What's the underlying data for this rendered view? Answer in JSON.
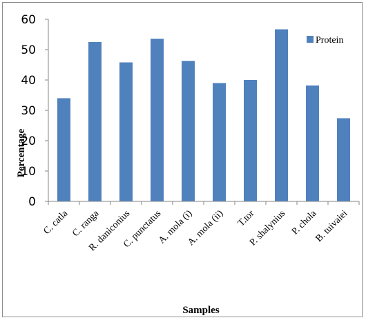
{
  "chart_data": {
    "type": "bar",
    "categories": [
      "C. catla",
      "C. ranga",
      "R. daniconius",
      "C. punctatus",
      "A. mola (i)",
      "A. mola (ii)",
      "T.tor",
      "P. shalynius",
      "P. chola",
      "B. tuivaiei"
    ],
    "series": [
      {
        "name": "Protein",
        "values": [
          34,
          52.5,
          45.8,
          53.6,
          46.3,
          39,
          40,
          56.7,
          38.2,
          27.4
        ]
      }
    ],
    "xlabel": "Samples",
    "ylabel": "Percentage",
    "ylim": [
      0,
      60
    ],
    "yticks": [
      0,
      10,
      20,
      30,
      40,
      50,
      60
    ],
    "grid": false,
    "legend_position": "top-right",
    "bar_color": "#4f81bd"
  }
}
